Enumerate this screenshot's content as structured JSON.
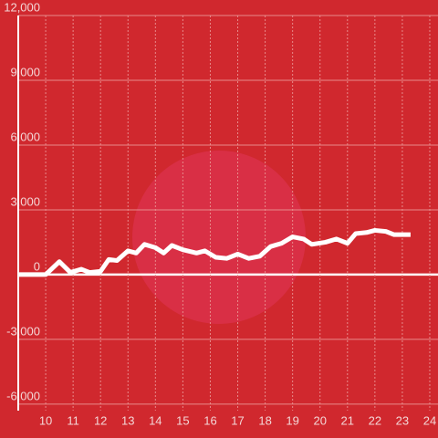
{
  "chart_data": {
    "type": "line",
    "x": [
      9,
      10,
      10.5,
      10.9,
      11.3,
      11.6,
      12,
      12.3,
      12.6,
      13,
      13.3,
      13.6,
      14,
      14.3,
      14.6,
      15,
      15.5,
      15.8,
      16.2,
      16.6,
      17,
      17.4,
      17.8,
      18.2,
      18.6,
      19,
      19.4,
      19.7,
      20.2,
      20.6,
      21,
      21.3,
      21.7,
      22,
      22.4,
      22.7,
      23.3
    ],
    "series": [
      {
        "color": "#ffffff",
        "values": [
          0,
          0,
          600,
          100,
          250,
          100,
          150,
          700,
          650,
          1100,
          1000,
          1400,
          1250,
          1000,
          1350,
          1150,
          1000,
          1100,
          800,
          750,
          950,
          750,
          850,
          1300,
          1450,
          1750,
          1650,
          1400,
          1500,
          1650,
          1450,
          1900,
          1950,
          2050,
          2000,
          1850,
          1850
        ]
      }
    ],
    "xlim": [
      9,
      24.3
    ],
    "xticks": [
      10,
      11,
      12,
      13,
      14,
      15,
      16,
      17,
      18,
      19,
      20,
      21,
      22,
      23,
      24
    ],
    "ylim": [
      -6300,
      12000
    ],
    "yticks": [
      {
        "value": 12000,
        "label": "12,000"
      },
      {
        "value": 9000,
        "label": "9,000"
      },
      {
        "value": 6000,
        "label": "6,000"
      },
      {
        "value": 3000,
        "label": "3,000"
      },
      0,
      {
        "value": -3000,
        "label": "-3,000"
      },
      {
        "value": -6000,
        "label": "-6,000"
      }
    ],
    "grid": true
  }
}
